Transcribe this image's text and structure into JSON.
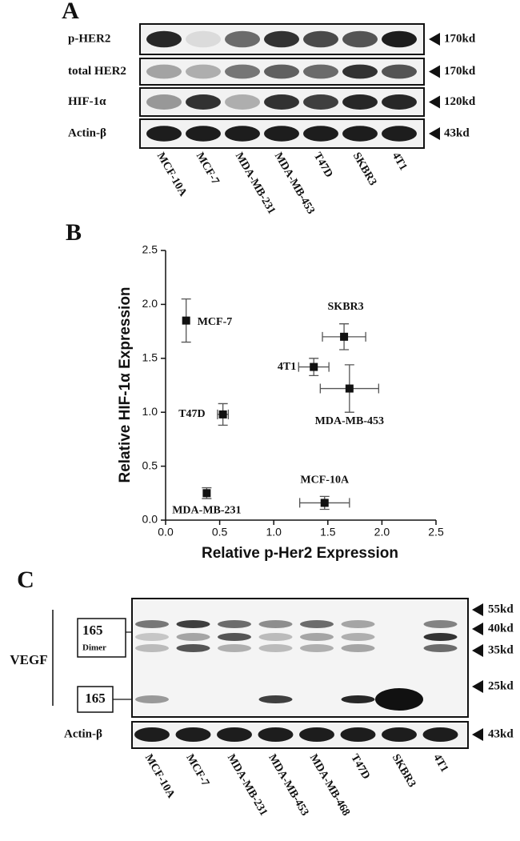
{
  "panel_a": {
    "letter": "A",
    "rows": [
      {
        "label": "p-HER2",
        "size": "170kd"
      },
      {
        "label": "total HER2",
        "size": "170kd"
      },
      {
        "label": "HIF-1α",
        "size": "120kd"
      },
      {
        "label": "Actin-β",
        "size": "43kd"
      }
    ],
    "lanes": [
      "MCF-10A",
      "MCF-7",
      "MDA-MB-231",
      "MDA-MB-453",
      "T47D",
      "SKBR3",
      "4T1"
    ]
  },
  "chart_data": {
    "type": "scatter",
    "panel_letter": "B",
    "x_label": "Relative p-Her2 Expression",
    "y_label": "Relative HIF-1α Expression",
    "point_labels": [
      "MCF-7",
      "SKBR3",
      "4T1",
      "MDA-MB-453",
      "T47D",
      "MDA-MB-231",
      "MCF-10A"
    ],
    "x": [
      0.19,
      1.65,
      1.37,
      1.7,
      0.53,
      0.38,
      1.47
    ],
    "values": [
      1.85,
      1.7,
      1.42,
      1.22,
      0.98,
      0.25,
      0.16
    ],
    "xerr": [
      null,
      0.2,
      0.14,
      0.27,
      0.05,
      null,
      0.23
    ],
    "yerr": [
      0.2,
      0.12,
      0.08,
      0.22,
      0.1,
      0.05,
      0.06
    ],
    "color": "#111111",
    "xlim": [
      0,
      2.5
    ],
    "ylim": [
      0,
      2.5
    ],
    "xticks": [
      {
        "value": 0,
        "label": "0.0"
      },
      0.5,
      {
        "value": 1,
        "label": "1.0"
      },
      1.5,
      {
        "value": 2,
        "label": "2.0"
      },
      2.5
    ],
    "yticks": [
      {
        "value": 0,
        "label": "0.0"
      },
      0.5,
      {
        "value": 1,
        "label": "1.0"
      },
      1.5,
      {
        "value": 2,
        "label": "2.0"
      },
      2.5
    ]
  },
  "panel_c": {
    "letter": "C",
    "group_label": "VEGF",
    "dimer_label": "165",
    "dimer_sublabel": "Dimer",
    "monomer_label": "165",
    "loading_label": "Actin-β",
    "markers": [
      "55kd",
      "40kd",
      "35kd",
      "25kd"
    ],
    "loading_marker": "43kd",
    "lanes": [
      "MCF-10A",
      "MCF-7",
      "MDA-MB-231",
      "MDA-MB-453",
      "MDA-MB-468",
      "T47D",
      "SKBR3",
      "4T1"
    ]
  }
}
